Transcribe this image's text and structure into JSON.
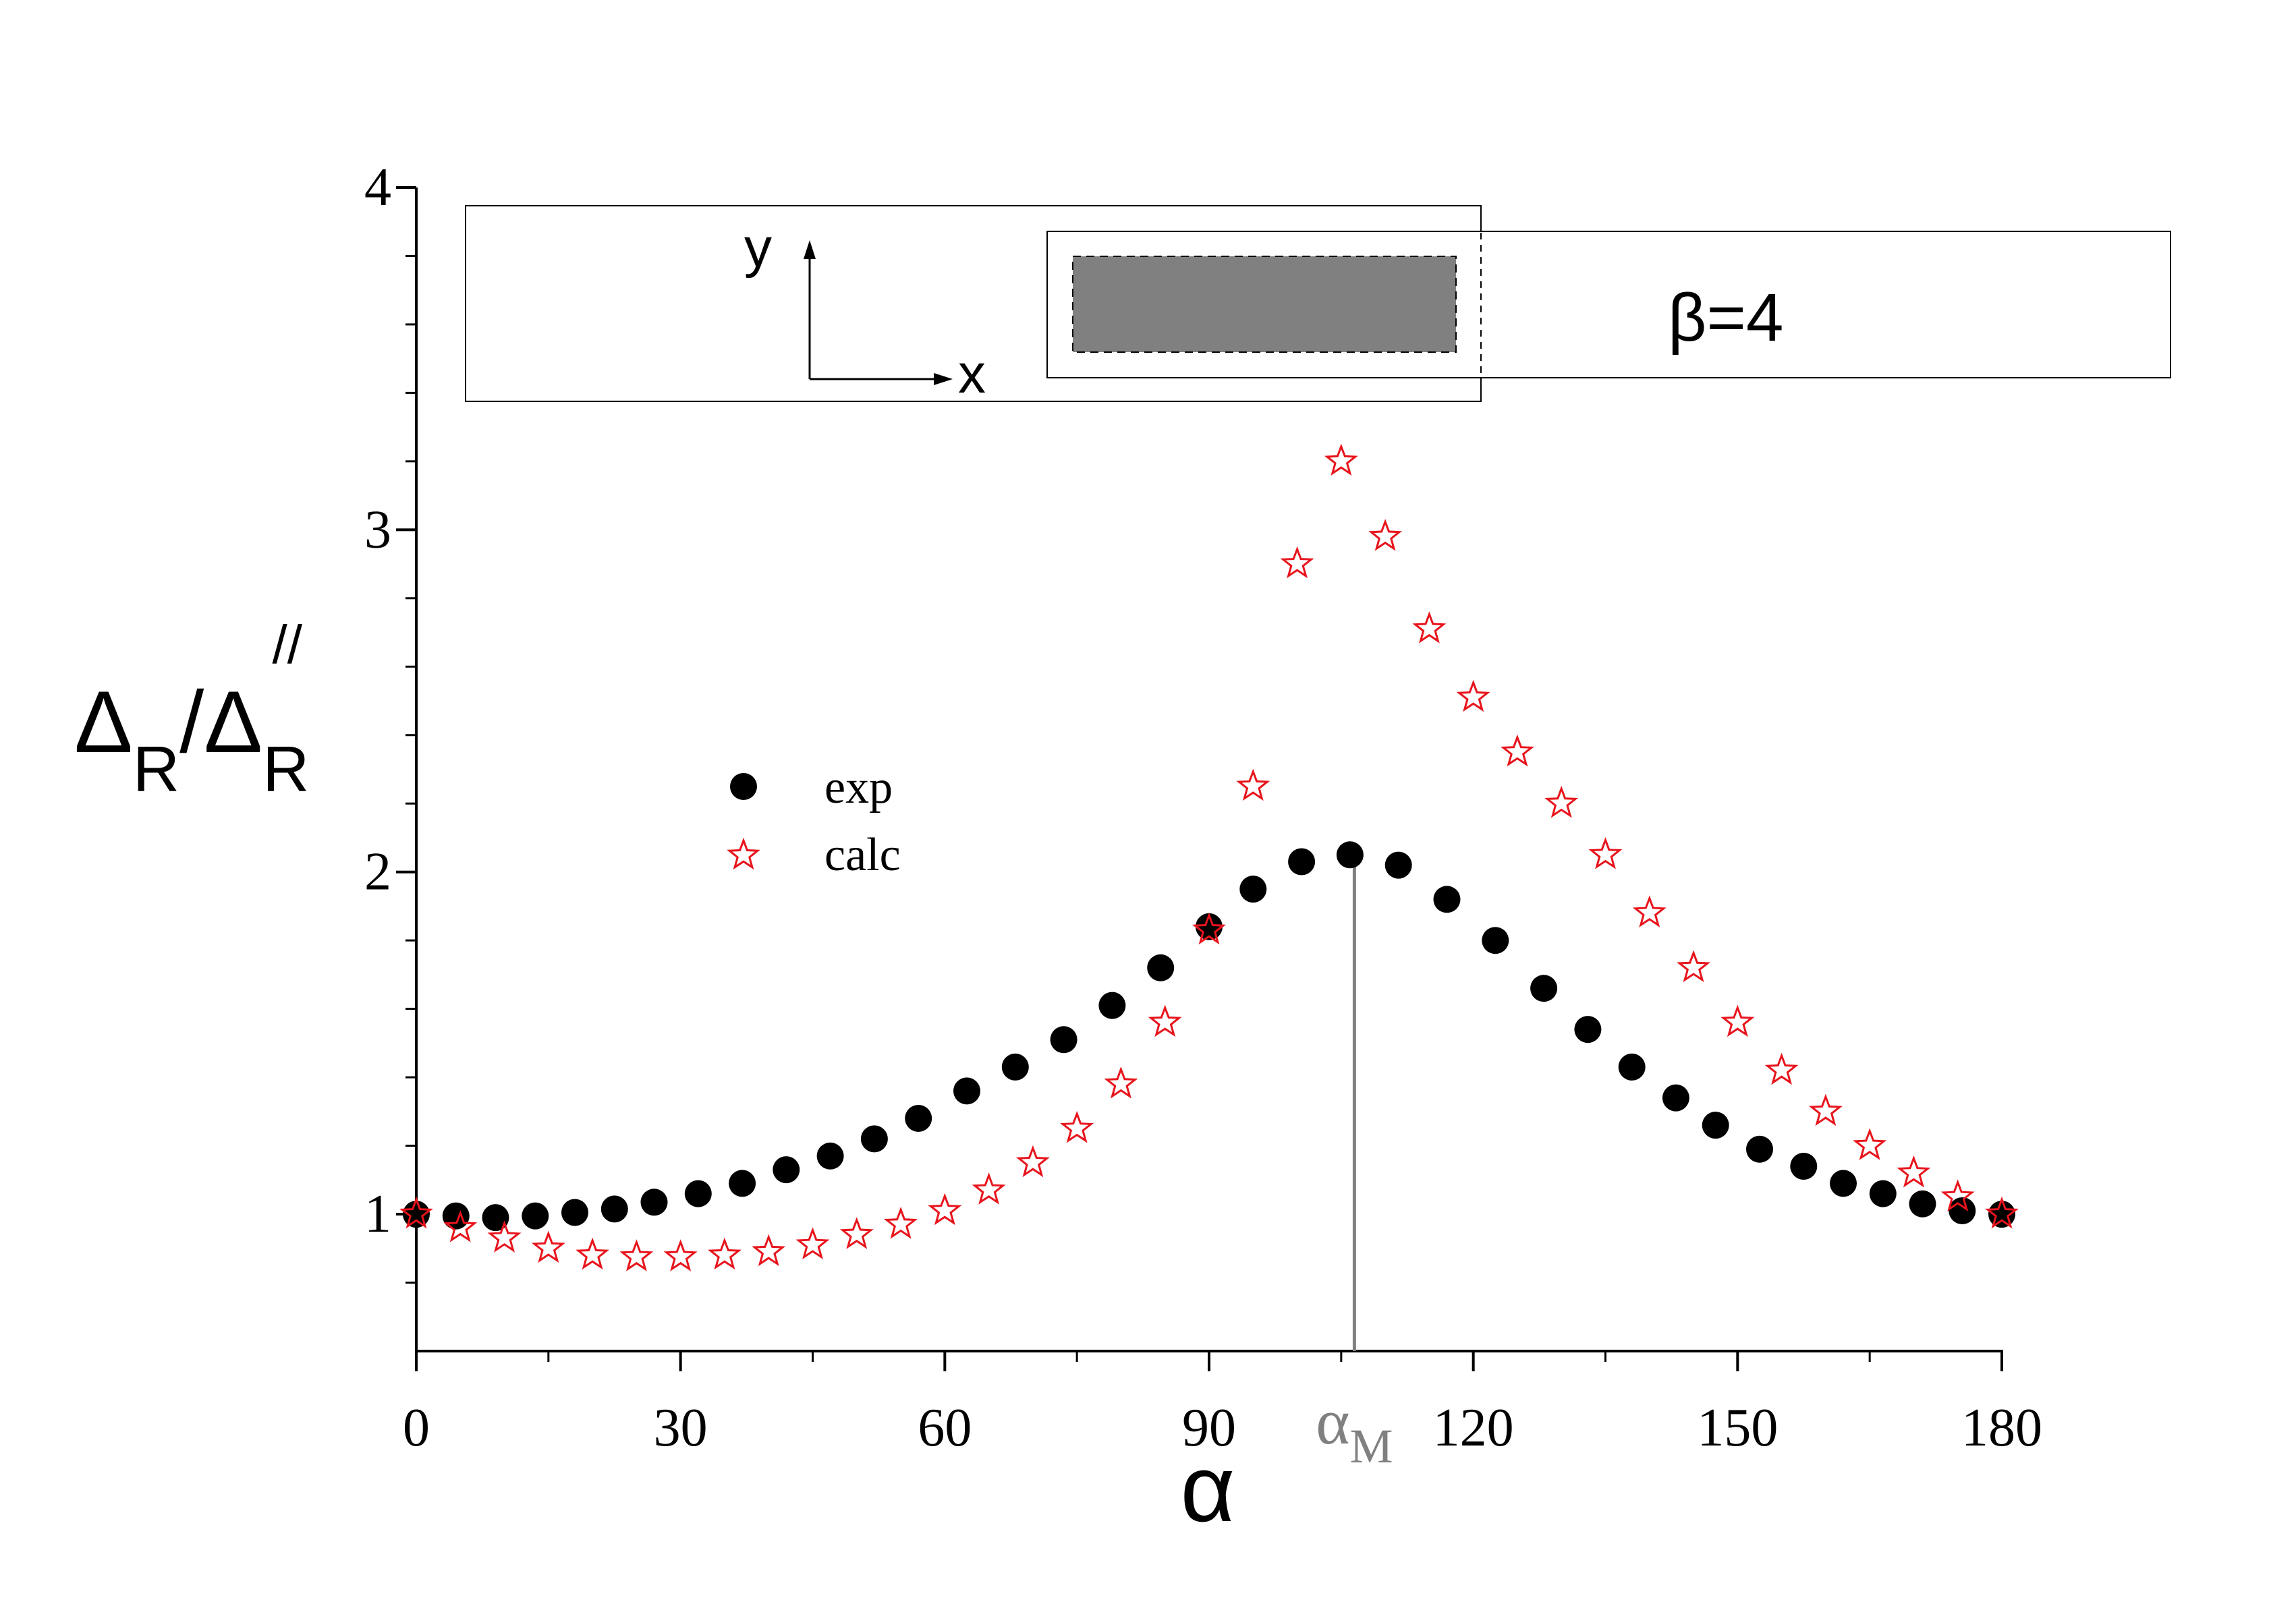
{
  "chart_data": {
    "type": "scatter",
    "xlabel": "α",
    "ylabel": {
      "main": "Δ",
      "sub": "R",
      "slash": "/",
      "main2": "Δ",
      "sub2": "R",
      "sup2": "//"
    },
    "xlim": [
      0,
      180
    ],
    "ylim": [
      0.6,
      4
    ],
    "xticks": [
      0,
      30,
      60,
      90,
      120,
      150,
      180
    ],
    "yticks": [
      1,
      2,
      3,
      4
    ],
    "yminor": [
      0.8,
      1.2,
      1.4,
      1.6,
      1.8,
      2.2,
      2.4,
      2.6,
      2.8,
      3.2,
      3.4,
      3.6,
      3.8
    ],
    "xminor": [
      15,
      45,
      75,
      105,
      135,
      165
    ],
    "alpha_m": {
      "value": 106.5,
      "label": "α",
      "sub": "M"
    },
    "series": [
      {
        "name": "exp",
        "marker": "filled-circle",
        "color": "#000000",
        "x": [
          0,
          4.5,
          9,
          13.5,
          18,
          22.5,
          27,
          32,
          37,
          42,
          47,
          52,
          57,
          62.5,
          68,
          73.5,
          79,
          84.5,
          90,
          95,
          100.5,
          106,
          111.5,
          117,
          122.5,
          128,
          133,
          138,
          143,
          147.5,
          152.5,
          157.5,
          162,
          166.5,
          171,
          175.5,
          180
        ],
        "y": [
          1.0,
          0.995,
          0.99,
          0.995,
          1.005,
          1.015,
          1.035,
          1.06,
          1.09,
          1.13,
          1.17,
          1.22,
          1.28,
          1.36,
          1.43,
          1.51,
          1.61,
          1.72,
          1.84,
          1.95,
          2.03,
          2.05,
          2.02,
          1.92,
          1.8,
          1.66,
          1.54,
          1.43,
          1.34,
          1.26,
          1.19,
          1.14,
          1.09,
          1.06,
          1.03,
          1.01,
          1.0
        ]
      },
      {
        "name": "calc",
        "marker": "open-star",
        "color": "#e8141c",
        "x": [
          0,
          5,
          10,
          15,
          20,
          25,
          30,
          35,
          40,
          45,
          50,
          55,
          60,
          65,
          70,
          75,
          80,
          85,
          90,
          95,
          100,
          105,
          110,
          115,
          120,
          125,
          130,
          135,
          140,
          145,
          150,
          155,
          160,
          165,
          170,
          175,
          180
        ],
        "y": [
          1.0,
          0.96,
          0.93,
          0.9,
          0.88,
          0.875,
          0.875,
          0.88,
          0.89,
          0.91,
          0.94,
          0.97,
          1.01,
          1.07,
          1.15,
          1.25,
          1.38,
          1.56,
          1.83,
          2.25,
          2.9,
          3.2,
          2.98,
          2.71,
          2.51,
          2.35,
          2.2,
          2.05,
          1.88,
          1.72,
          1.56,
          1.42,
          1.3,
          1.2,
          1.12,
          1.05,
          1.0
        ]
      }
    ],
    "legend": {
      "placement": "center-left",
      "entries": [
        "exp",
        "calc"
      ]
    }
  },
  "inset": {
    "axis_y": "y",
    "axis_x": "x",
    "beta_label": "β=4"
  }
}
